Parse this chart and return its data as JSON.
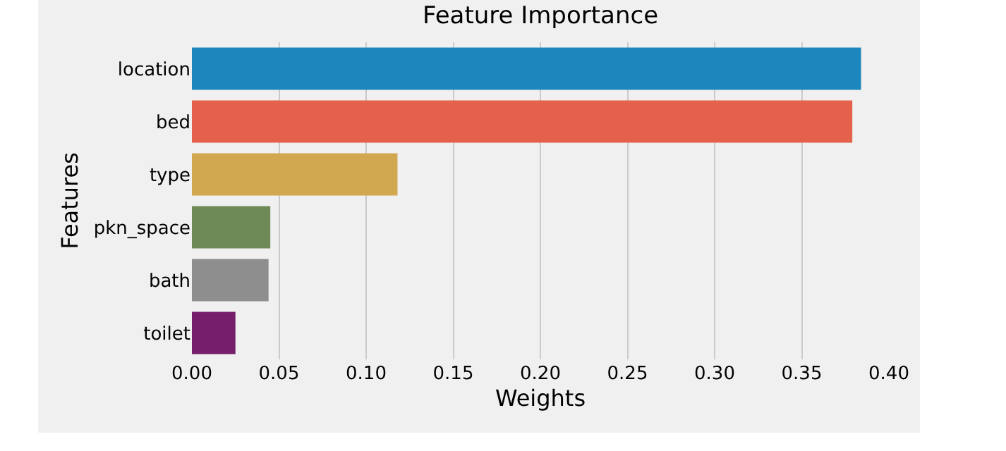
{
  "chart_data": {
    "type": "bar",
    "orientation": "horizontal",
    "title": "Feature Importance",
    "xlabel": "Weights",
    "ylabel": "Features",
    "categories": [
      "location",
      "bed",
      "type",
      "pkn_space",
      "bath",
      "toilet"
    ],
    "values": [
      0.384,
      0.379,
      0.118,
      0.045,
      0.044,
      0.025
    ],
    "colors": [
      "#1b87bc",
      "#e4624c",
      "#d1a74f",
      "#6e8a57",
      "#8e8e8e",
      "#751f6c"
    ],
    "xlim": [
      0,
      0.4
    ],
    "xticks": [
      {
        "value": 0,
        "label": "0.00"
      },
      {
        "value": 0.05,
        "label": "0.05"
      },
      {
        "value": 0.1,
        "label": "0.10"
      },
      {
        "value": 0.15,
        "label": "0.15"
      },
      {
        "value": 0.2,
        "label": "0.20"
      },
      {
        "value": 0.25,
        "label": "0.25"
      },
      {
        "value": 0.3,
        "label": "0.30"
      },
      {
        "value": 0.35,
        "label": "0.35"
      },
      {
        "value": 0.4,
        "label": "0.40"
      }
    ],
    "grid": "x",
    "legend": false
  }
}
